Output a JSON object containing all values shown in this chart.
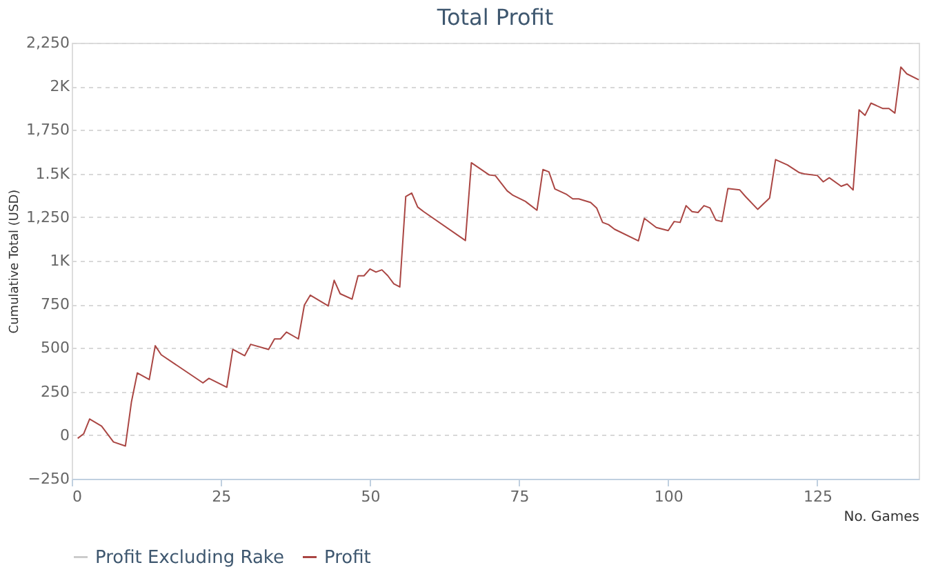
{
  "chart_data": {
    "type": "line",
    "title": "Total Profit",
    "xlabel": "No. Games",
    "ylabel": "Cumulative Total (USD)",
    "x": [
      1,
      2,
      3,
      5,
      7,
      9,
      10,
      11,
      13,
      14,
      15,
      22,
      23,
      26,
      27,
      29,
      30,
      33,
      34,
      35,
      36,
      38,
      39,
      40,
      43,
      44,
      45,
      47,
      48,
      49,
      50,
      51,
      52,
      53,
      54,
      55,
      56,
      57,
      58,
      59,
      66,
      67,
      70,
      71,
      73,
      74,
      76,
      78,
      79,
      80,
      81,
      83,
      84,
      85,
      87,
      88,
      89,
      90,
      91,
      95,
      96,
      98,
      100,
      101,
      102,
      103,
      104,
      105,
      106,
      107,
      108,
      109,
      110,
      112,
      113,
      115,
      117,
      118,
      120,
      122,
      123,
      125,
      126,
      127,
      129,
      130,
      131,
      132,
      133,
      134,
      136,
      137,
      138,
      139,
      140,
      142
    ],
    "series": [
      {
        "name": "Profit Excluding Rake",
        "color": "#cccccc",
        "values": [
          null,
          null,
          null,
          null,
          null,
          null,
          null,
          null,
          null,
          null,
          null,
          null,
          null,
          null,
          null,
          null,
          null,
          null,
          null,
          null,
          null,
          null,
          null,
          null,
          null,
          null,
          null,
          null,
          null,
          null,
          null,
          null,
          null,
          null,
          null,
          null,
          null,
          null,
          null,
          null,
          null,
          null,
          null,
          null,
          null,
          null,
          null,
          null,
          null,
          null,
          null,
          null,
          null,
          null,
          null,
          null,
          null,
          null,
          null,
          null,
          null,
          null,
          null,
          null,
          null,
          null,
          null,
          null,
          null,
          null,
          null,
          null,
          null,
          null,
          null,
          null,
          null,
          null,
          null,
          null,
          null,
          null,
          null,
          null,
          null,
          null,
          null,
          null,
          null,
          null,
          null,
          null,
          null,
          null,
          null,
          null
        ]
      },
      {
        "name": "Profit",
        "color": "#aa4643",
        "values": [
          -18,
          8,
          93,
          52,
          -39,
          -62,
          189,
          357,
          319,
          513,
          461,
          300,
          326,
          275,
          492,
          456,
          521,
          492,
          552,
          552,
          591,
          552,
          746,
          803,
          741,
          888,
          811,
          780,
          914,
          914,
          953,
          935,
          948,
          914,
          868,
          850,
          1368,
          1388,
          1308,
          1282,
          1116,
          1562,
          1492,
          1489,
          1401,
          1375,
          1342,
          1290,
          1523,
          1510,
          1412,
          1380,
          1355,
          1355,
          1334,
          1303,
          1220,
          1207,
          1181,
          1114,
          1243,
          1191,
          1173,
          1225,
          1220,
          1316,
          1282,
          1277,
          1316,
          1303,
          1233,
          1225,
          1414,
          1406,
          1367,
          1295,
          1360,
          1580,
          1549,
          1505,
          1497,
          1489,
          1453,
          1476,
          1427,
          1440,
          1406,
          1865,
          1834,
          1904,
          1873,
          1873,
          1847,
          2111,
          2072,
          2038
        ]
      }
    ],
    "xlim": [
      0,
      142
    ],
    "xticks": [
      0,
      25,
      50,
      75,
      100,
      125
    ],
    "ylim": [
      -250,
      2250
    ],
    "yticks": [
      {
        "value": -250,
        "label": "−250"
      },
      0,
      250,
      500,
      750,
      {
        "value": 1000,
        "label": "1K"
      },
      {
        "value": 1250,
        "label": "1,250"
      },
      {
        "value": 1500,
        "label": "1.5K"
      },
      {
        "value": 1750,
        "label": "1,750"
      },
      {
        "value": 2000,
        "label": "2K"
      },
      {
        "value": 2250,
        "label": "2,250"
      }
    ],
    "grid": "y",
    "legend": "bottom",
    "marker": "none",
    "line_style": "solid"
  }
}
